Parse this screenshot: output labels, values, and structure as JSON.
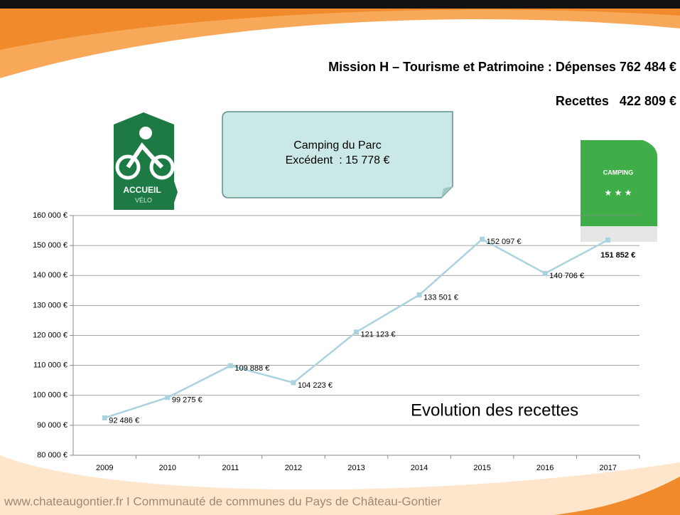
{
  "header": {
    "title": "Mission H – Tourisme et Patrimoine : Dépenses 762 484 €",
    "subtitle": "Recettes   422 809 €"
  },
  "callout": {
    "lines": [
      "Camping du Parc",
      "Excédent  : 15 778 €"
    ]
  },
  "logos": {
    "accueil": "ACCUEIL",
    "velo": "VÉLO",
    "camping": "CAMPING",
    "stars": "★ ★ ★"
  },
  "chart_data": {
    "type": "line",
    "title": "Evolution des recettes",
    "categories": [
      "2009",
      "2010",
      "2011",
      "2012",
      "2013",
      "2014",
      "2015",
      "2016",
      "2017"
    ],
    "values": [
      92486,
      99275,
      109888,
      104223,
      121123,
      133501,
      152097,
      140706,
      151852
    ],
    "value_labels": [
      "92 486 €",
      "99 275 €",
      "109 888 €",
      "104 223 €",
      "121 123 €",
      "133 501 €",
      "152 097 €",
      "140 706 €",
      "151 852 €"
    ],
    "color": "#a9d3dd",
    "ylim": [
      80000,
      160000
    ],
    "yticks": [
      {
        "value": 80000,
        "label": "80 000 €"
      },
      {
        "value": 90000,
        "label": "90 000 €"
      },
      {
        "value": 100000,
        "label": "100 000 €"
      },
      {
        "value": 110000,
        "label": "110 000 €"
      },
      {
        "value": 120000,
        "label": "120 000 €"
      },
      {
        "value": 130000,
        "label": "130 000 €"
      },
      {
        "value": 140000,
        "label": "140 000 €"
      },
      {
        "value": 150000,
        "label": "150 000 €"
      },
      {
        "value": 160000,
        "label": "160 000 €"
      }
    ],
    "grid": true
  },
  "footer": "www.chateaugontier.fr I Communauté de communes du Pays de Château-Gontier"
}
